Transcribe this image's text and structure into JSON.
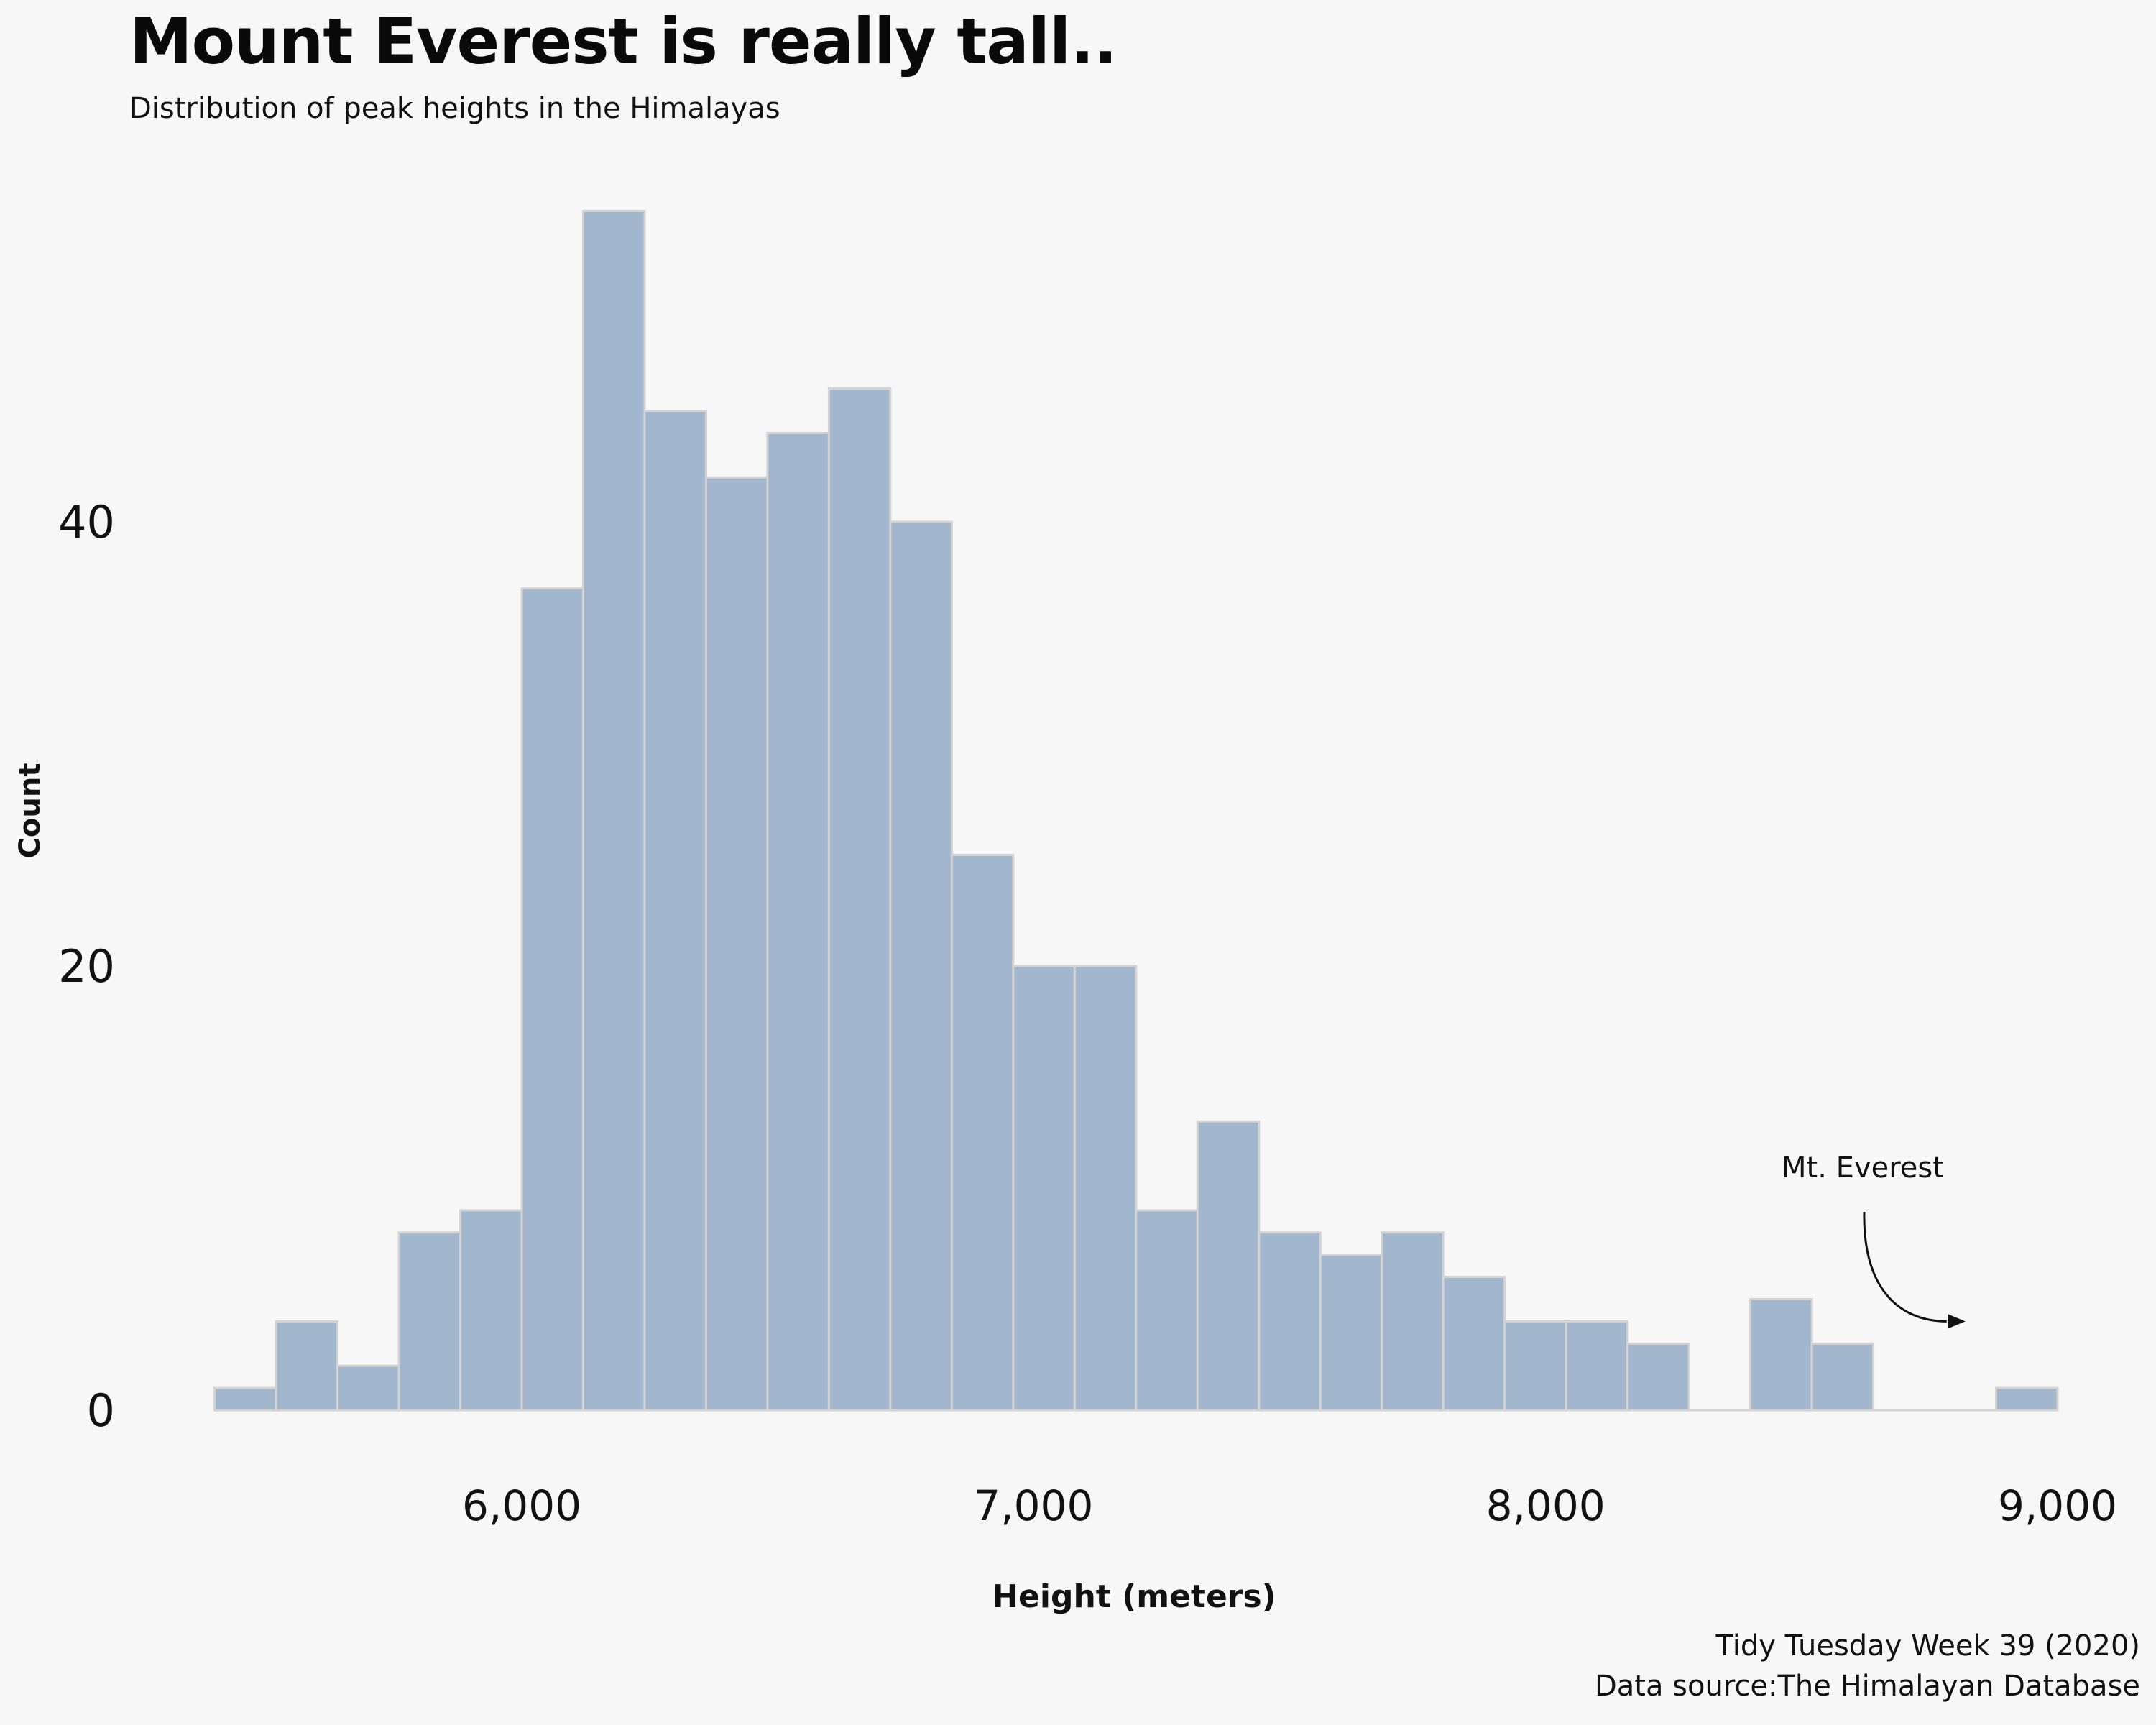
{
  "chart_data": {
    "type": "bar",
    "title": "Mount Everest is really tall..",
    "subtitle": "Distribution of peak heights in the Himalayas",
    "xlabel": "Height (meters)",
    "ylabel": "Count",
    "xlim": [
      5350,
      9000
    ],
    "ylim": [
      0,
      54
    ],
    "x_ticks": [
      6000,
      7000,
      8000,
      9000
    ],
    "x_tick_labels": [
      "6,000",
      "7,000",
      "8,000",
      "9,000"
    ],
    "y_ticks": [
      0,
      20,
      40
    ],
    "y_tick_labels": [
      "0",
      "20",
      "40"
    ],
    "bin_width": 120,
    "bins": [
      {
        "start": 5400,
        "end": 5520,
        "count": 1
      },
      {
        "start": 5520,
        "end": 5640,
        "count": 4
      },
      {
        "start": 5640,
        "end": 5760,
        "count": 2
      },
      {
        "start": 5760,
        "end": 5880,
        "count": 8
      },
      {
        "start": 5880,
        "end": 6000,
        "count": 9
      },
      {
        "start": 6000,
        "end": 6120,
        "count": 37
      },
      {
        "start": 6120,
        "end": 6240,
        "count": 54
      },
      {
        "start": 6240,
        "end": 6360,
        "count": 45
      },
      {
        "start": 6360,
        "end": 6480,
        "count": 42
      },
      {
        "start": 6480,
        "end": 6600,
        "count": 44
      },
      {
        "start": 6600,
        "end": 6720,
        "count": 46
      },
      {
        "start": 6720,
        "end": 6840,
        "count": 40
      },
      {
        "start": 6840,
        "end": 6960,
        "count": 25
      },
      {
        "start": 6960,
        "end": 7080,
        "count": 20
      },
      {
        "start": 7080,
        "end": 7200,
        "count": 20
      },
      {
        "start": 7200,
        "end": 7320,
        "count": 9
      },
      {
        "start": 7320,
        "end": 7440,
        "count": 13
      },
      {
        "start": 7440,
        "end": 7560,
        "count": 8
      },
      {
        "start": 7560,
        "end": 7680,
        "count": 7
      },
      {
        "start": 7680,
        "end": 7800,
        "count": 8
      },
      {
        "start": 7800,
        "end": 7920,
        "count": 6
      },
      {
        "start": 7920,
        "end": 8040,
        "count": 4
      },
      {
        "start": 8040,
        "end": 8160,
        "count": 4
      },
      {
        "start": 8160,
        "end": 8280,
        "count": 3
      },
      {
        "start": 8280,
        "end": 8400,
        "count": 0
      },
      {
        "start": 8400,
        "end": 8520,
        "count": 5
      },
      {
        "start": 8520,
        "end": 8640,
        "count": 3
      },
      {
        "start": 8640,
        "end": 8760,
        "count": 0
      },
      {
        "start": 8760,
        "end": 8880,
        "count": 0
      },
      {
        "start": 8880,
        "end": 9000,
        "count": 1
      }
    ],
    "annotation": {
      "text": "Mt. Everest",
      "target_x": 8848,
      "target_y": 4
    },
    "grid": false,
    "legend": "none",
    "colors": {
      "bar_fill": "#a2b6cd",
      "bar_stroke": "#d3d3d3",
      "background": "#f7f7f7",
      "text": "#111111"
    }
  },
  "caption": {
    "line1": "Tidy Tuesday Week 39 (2020)",
    "line2": "Data source:The Himalayan Database"
  }
}
